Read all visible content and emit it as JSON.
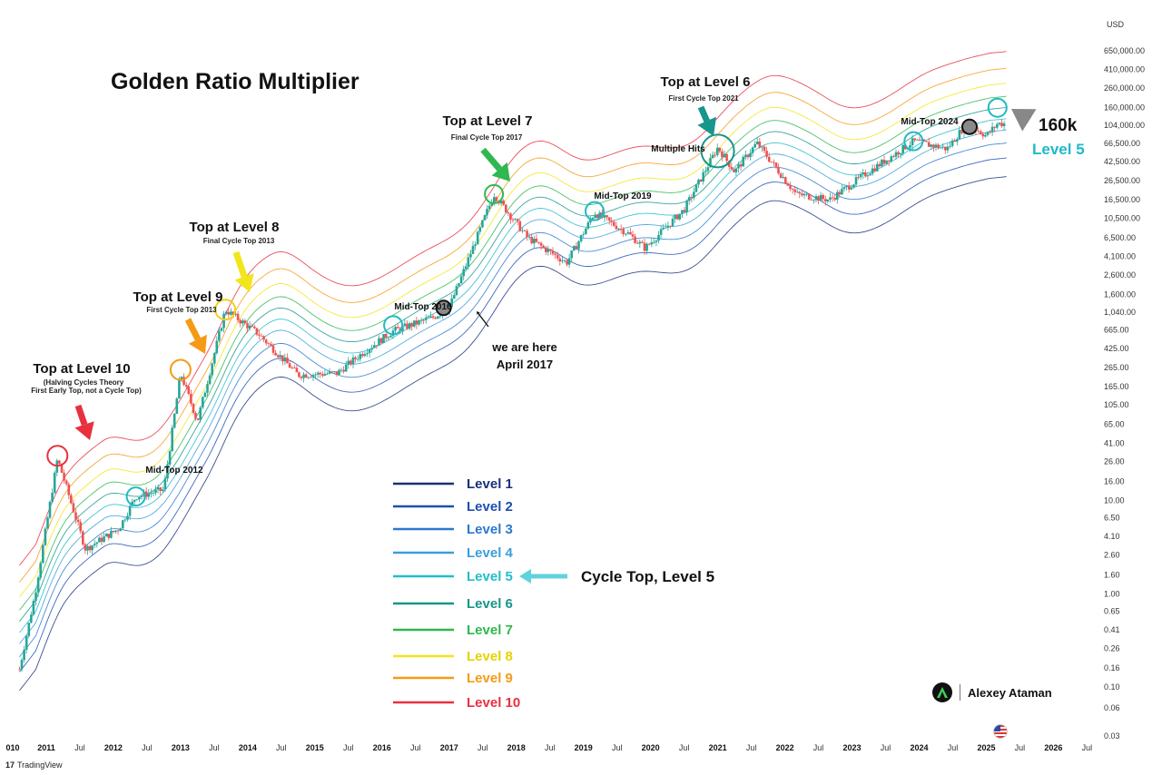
{
  "title": "Golden Ratio Multiplier",
  "y_unit": "USD",
  "y_ticks": [
    "650,000.00",
    "410,000.00",
    "260,000.00",
    "160,000.00",
    "104,000.00",
    "66,500.00",
    "42,500.00",
    "26,500.00",
    "16,500.00",
    "10,500.00",
    "6,500.00",
    "4,100.00",
    "2,600.00",
    "1,600.00",
    "1,040.00",
    "665.00",
    "425.00",
    "265.00",
    "165.00",
    "105.00",
    "65.00",
    "41.00",
    "26.00",
    "16.00",
    "10.00",
    "6.50",
    "4.10",
    "2.60",
    "1.60",
    "1.00",
    "0.65",
    "0.41",
    "0.26",
    "0.16",
    "0.10",
    "0.06",
    "0.03"
  ],
  "x_ticks": [
    {
      "label": "010",
      "bold": true
    },
    {
      "label": "2011",
      "bold": true
    },
    {
      "label": "Jul",
      "bold": false
    },
    {
      "label": "2012",
      "bold": true
    },
    {
      "label": "Jul",
      "bold": false
    },
    {
      "label": "2013",
      "bold": true
    },
    {
      "label": "Jul",
      "bold": false
    },
    {
      "label": "2014",
      "bold": true
    },
    {
      "label": "Jul",
      "bold": false
    },
    {
      "label": "2015",
      "bold": true
    },
    {
      "label": "Jul",
      "bold": false
    },
    {
      "label": "2016",
      "bold": true
    },
    {
      "label": "Jul",
      "bold": false
    },
    {
      "label": "2017",
      "bold": true
    },
    {
      "label": "Jul",
      "bold": false
    },
    {
      "label": "2018",
      "bold": true
    },
    {
      "label": "Jul",
      "bold": false
    },
    {
      "label": "2019",
      "bold": true
    },
    {
      "label": "Jul",
      "bold": false
    },
    {
      "label": "2020",
      "bold": true
    },
    {
      "label": "Jul",
      "bold": false
    },
    {
      "label": "2021",
      "bold": true
    },
    {
      "label": "Jul",
      "bold": false
    },
    {
      "label": "2022",
      "bold": true
    },
    {
      "label": "Jul",
      "bold": false
    },
    {
      "label": "2023",
      "bold": true
    },
    {
      "label": "Jul",
      "bold": false
    },
    {
      "label": "2024",
      "bold": true
    },
    {
      "label": "Jul",
      "bold": false
    },
    {
      "label": "2025",
      "bold": true
    },
    {
      "label": "Jul",
      "bold": false
    },
    {
      "label": "2026",
      "bold": true
    },
    {
      "label": "Jul",
      "bold": false
    }
  ],
  "legend": [
    {
      "label": "Level 1",
      "color": "#1a2f7a"
    },
    {
      "label": "Level 2",
      "color": "#1d4fb0"
    },
    {
      "label": "Level 3",
      "color": "#2a78cf"
    },
    {
      "label": "Level 4",
      "color": "#3a9edc"
    },
    {
      "label": "Level 5",
      "color": "#22bccb"
    },
    {
      "label": "Level 6",
      "color": "#17968a"
    },
    {
      "label": "Level 7",
      "color": "#2eb84f"
    },
    {
      "label": "Level 8",
      "color": "#f2e51a"
    },
    {
      "label": "Level 9",
      "color": "#f59a16"
    },
    {
      "label": "Level 10",
      "color": "#e8303f"
    }
  ],
  "annotations": {
    "top10": {
      "title": "Top at Level 10",
      "line1": "(Halving Cycles Theory",
      "line2": "First Early Top, not a Cycle Top)"
    },
    "top9": {
      "title": "Top at Level 9",
      "sub": "First Cycle Top 2013"
    },
    "top8": {
      "title": "Top at Level 8",
      "sub": "Final Cycle Top 2013"
    },
    "top7": {
      "title": "Top at Level 7",
      "sub": "Final Cycle Top 2017"
    },
    "top6": {
      "title": "Top at Level 6",
      "sub": "First Cycle Top 2021"
    },
    "mid2012": "Mid-Top 2012",
    "mid2016": "Mid-Top 2016",
    "mid2019": "Mid-Top 2019",
    "mid2024": "Mid-Top 2024",
    "multiple_hits": "Multiple Hits",
    "here1": "we are here",
    "here2": "April 2017",
    "target_value": "160k",
    "target_level": "Level 5",
    "cycle_top": "Cycle Top, Level 5"
  },
  "brand": "Alexey Ataman",
  "footer": "TradingView",
  "chart_data": {
    "type": "line",
    "title": "Golden Ratio Multiplier",
    "y_scale": "log",
    "y_unit": "USD",
    "ylim": [
      0.03,
      1000000
    ],
    "x_range": [
      "2010-10",
      "2026-08"
    ],
    "series": [
      {
        "name": "Level 1",
        "color": "#1a2f7a"
      },
      {
        "name": "Level 2",
        "color": "#1d4fb0"
      },
      {
        "name": "Level 3",
        "color": "#2a78cf"
      },
      {
        "name": "Level 4",
        "color": "#3a9edc"
      },
      {
        "name": "Level 5",
        "color": "#22bccb"
      },
      {
        "name": "Level 6",
        "color": "#17968a"
      },
      {
        "name": "Level 7",
        "color": "#2eb84f"
      },
      {
        "name": "Level 8",
        "color": "#f2e51a"
      },
      {
        "name": "Level 9",
        "color": "#f59a16"
      },
      {
        "name": "Level 10",
        "color": "#e8303f"
      }
    ],
    "price": {
      "x": [
        "2010-10",
        "2011-02",
        "2011-06",
        "2011-11",
        "2012-05",
        "2012-08",
        "2013-01",
        "2013-04",
        "2013-07",
        "2013-12",
        "2014-06",
        "2015-01",
        "2015-08",
        "2016-01",
        "2016-06",
        "2017-01",
        "2017-04",
        "2017-12",
        "2018-06",
        "2019-01",
        "2019-06",
        "2019-12",
        "2020-03",
        "2020-10",
        "2021-04",
        "2021-07",
        "2021-11",
        "2022-06",
        "2022-12",
        "2023-06",
        "2024-03",
        "2024-09",
        "2024-12",
        "2025-02",
        "2025-04",
        "2025-06"
      ],
      "y": [
        0.07,
        1,
        28,
        3,
        5,
        11,
        13,
        230,
        70,
        1100,
        600,
        220,
        230,
        400,
        650,
        900,
        1150,
        19000,
        6500,
        3500,
        12000,
        7200,
        5000,
        13000,
        60000,
        33000,
        67000,
        19000,
        16500,
        30000,
        70000,
        58000,
        100000,
        96000,
        80000,
        108000
      ]
    },
    "circles": [
      {
        "label": "Top at Level 10",
        "x": "2011-06",
        "y": 30
      },
      {
        "label": "Mid-Top 2012",
        "x": "2012-08",
        "y": 11
      },
      {
        "label": "Top at Level 9",
        "x": "2013-04",
        "y": 250
      },
      {
        "label": "Top at Level 8",
        "x": "2013-12",
        "y": 1100
      },
      {
        "label": "Mid-Top 2016",
        "x": "2016-06",
        "y": 750
      },
      {
        "label": "we are here",
        "x": "2017-03",
        "y": 1150
      },
      {
        "label": "Top at Level 7",
        "x": "2017-12",
        "y": 19000
      },
      {
        "label": "Mid-Top 2019",
        "x": "2019-06",
        "y": 12500
      },
      {
        "label": "Top at Level 6",
        "x": "2021-04",
        "y": 55000
      },
      {
        "label": "Mid-Top 2024",
        "x": "2024-03",
        "y": 70000
      },
      {
        "label": "Mid-Top 2024",
        "x": "2025-01",
        "y": 100000
      },
      {
        "label": "160k",
        "x": "2025-06",
        "y": 160000
      }
    ]
  }
}
